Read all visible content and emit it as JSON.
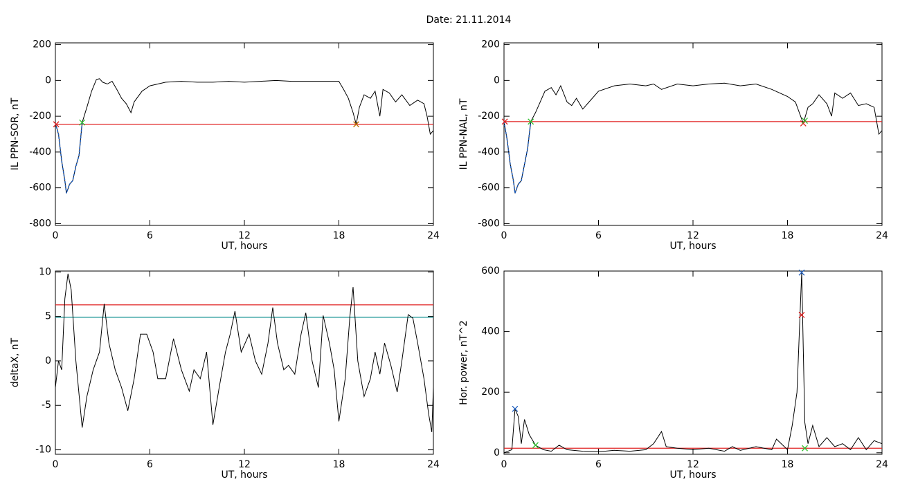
{
  "title": "Date:  21.11.2014",
  "chart_data": [
    {
      "type": "line",
      "xlabel": "UT, hours",
      "ylabel": "IL PPN-SOR, nT",
      "xlim": [
        0,
        24
      ],
      "ylim": [
        -810,
        210
      ],
      "xticks": [
        0,
        6,
        12,
        18,
        24
      ],
      "yticks": [
        -800,
        -600,
        -400,
        -200,
        0,
        200
      ],
      "series": [
        {
          "color": "#000000",
          "x": [
            0,
            0.2,
            0.4,
            0.6,
            0.7,
            0.9,
            1.1,
            1.3,
            1.5,
            1.7,
            2.0,
            2.3,
            2.6,
            2.8,
            3.0,
            3.3,
            3.6,
            3.9,
            4.2,
            4.5,
            4.8,
            5.0,
            5.5,
            6,
            6.5,
            7,
            8,
            9,
            10,
            11,
            12,
            13,
            14,
            15,
            16,
            17,
            18,
            18.3,
            18.6,
            18.9,
            19.1,
            19.3,
            19.6,
            20,
            20.3,
            20.6,
            20.8,
            21.2,
            21.6,
            22,
            22.5,
            23,
            23.4,
            23.6,
            23.8,
            24
          ],
          "values": [
            -240,
            -300,
            -450,
            -560,
            -630,
            -580,
            -560,
            -480,
            -420,
            -235,
            -150,
            -60,
            5,
            10,
            -10,
            -20,
            -5,
            -50,
            -100,
            -130,
            -180,
            -120,
            -60,
            -30,
            -20,
            -10,
            -5,
            -10,
            -10,
            -5,
            -10,
            -5,
            0,
            -5,
            -5,
            -5,
            -5,
            -50,
            -100,
            -180,
            -245,
            -150,
            -80,
            -100,
            -60,
            -200,
            -50,
            -70,
            -120,
            -80,
            -140,
            -110,
            -130,
            -200,
            -300,
            -280
          ]
        },
        {
          "color": "#1f5fbf",
          "x": [
            0,
            0.2,
            0.4,
            0.6,
            0.7,
            0.9,
            1.1,
            1.3,
            1.5,
            1.7
          ],
          "values": [
            -240,
            -300,
            -450,
            -560,
            -630,
            -580,
            -560,
            -480,
            -420,
            -235
          ]
        }
      ],
      "reference_lines": [
        {
          "value": -245,
          "color": "#e02020"
        }
      ],
      "markers": [
        {
          "x": 0.05,
          "y": -245,
          "color": "#e02020"
        },
        {
          "x": 1.7,
          "y": -235,
          "color": "#30c030"
        },
        {
          "x": 19.1,
          "y": -245,
          "color": "#c07000"
        }
      ]
    },
    {
      "type": "line",
      "xlabel": "UT, hours",
      "ylabel": "IL PPN-NAL, nT",
      "xlim": [
        0,
        24
      ],
      "ylim": [
        -810,
        210
      ],
      "xticks": [
        0,
        6,
        12,
        18,
        24
      ],
      "yticks": [
        -800,
        -600,
        -400,
        -200,
        0,
        200
      ],
      "series": [
        {
          "color": "#000000",
          "x": [
            0,
            0.2,
            0.4,
            0.6,
            0.7,
            0.9,
            1.1,
            1.3,
            1.5,
            1.7,
            2,
            2.3,
            2.6,
            3,
            3.3,
            3.6,
            4,
            4.3,
            4.6,
            5,
            5.3,
            6,
            7,
            8,
            9,
            9.5,
            10,
            11,
            12,
            13,
            14,
            15,
            16,
            17,
            18,
            18.5,
            19,
            19.3,
            19.6,
            20,
            20.5,
            20.8,
            21,
            21.5,
            22,
            22.5,
            23,
            23.5,
            23.8,
            24
          ],
          "values": [
            -230,
            -330,
            -470,
            -560,
            -630,
            -580,
            -560,
            -470,
            -380,
            -230,
            -180,
            -120,
            -60,
            -40,
            -80,
            -30,
            -120,
            -140,
            -100,
            -160,
            -130,
            -60,
            -30,
            -20,
            -30,
            -20,
            -50,
            -20,
            -30,
            -20,
            -15,
            -30,
            -20,
            -50,
            -90,
            -120,
            -240,
            -150,
            -130,
            -80,
            -130,
            -200,
            -70,
            -100,
            -70,
            -140,
            -130,
            -150,
            -300,
            -280
          ]
        },
        {
          "color": "#1f5fbf",
          "x": [
            0,
            0.2,
            0.4,
            0.6,
            0.7,
            0.9,
            1.1,
            1.3,
            1.5,
            1.7
          ],
          "values": [
            -230,
            -330,
            -470,
            -560,
            -630,
            -580,
            -560,
            -470,
            -380,
            -230
          ]
        }
      ],
      "reference_lines": [
        {
          "value": -230,
          "color": "#e02020"
        }
      ],
      "markers": [
        {
          "x": 0.05,
          "y": -230,
          "color": "#e02020"
        },
        {
          "x": 1.7,
          "y": -230,
          "color": "#30c030"
        },
        {
          "x": 19,
          "y": -240,
          "color": "#e02020"
        },
        {
          "x": 19.1,
          "y": -225,
          "color": "#30c030"
        }
      ]
    },
    {
      "type": "line",
      "xlabel": "UT, hours",
      "ylabel": "deltaX, nT",
      "xlim": [
        0,
        24
      ],
      "ylim": [
        -10.5,
        10.1
      ],
      "xticks": [
        0,
        6,
        12,
        18,
        24
      ],
      "yticks": [
        -10,
        -5,
        0,
        5,
        10
      ],
      "series": [
        {
          "color": "#000000",
          "x": [
            0,
            0.2,
            0.4,
            0.6,
            0.8,
            1.0,
            1.3,
            1.7,
            2,
            2.4,
            2.8,
            3.1,
            3.4,
            3.8,
            4.2,
            4.6,
            5,
            5.4,
            5.8,
            6.2,
            6.5,
            7,
            7.5,
            8,
            8.5,
            8.8,
            9.2,
            9.6,
            10,
            10.4,
            10.8,
            11.1,
            11.4,
            11.8,
            12.3,
            12.7,
            13.1,
            13.5,
            13.8,
            14.1,
            14.5,
            14.8,
            15.2,
            15.6,
            15.9,
            16.3,
            16.7,
            17,
            17.4,
            17.7,
            18,
            18.4,
            18.7,
            18.9,
            19.2,
            19.6,
            20,
            20.3,
            20.6,
            20.9,
            21.3,
            21.7,
            22,
            22.4,
            22.7,
            23,
            23.4,
            23.7,
            23.9,
            24
          ],
          "values": [
            -3,
            0,
            -1,
            7,
            9.8,
            8,
            0,
            -7.5,
            -4,
            -1,
            1,
            6.4,
            2,
            -1,
            -3,
            -5.6,
            -2,
            3,
            3,
            1,
            -2,
            -2,
            2.5,
            -1,
            -3.4,
            -1,
            -2,
            1,
            -7.2,
            -3,
            1,
            3,
            5.6,
            1,
            3,
            0,
            -1.5,
            2,
            6,
            2,
            -1,
            -0.5,
            -1.5,
            3,
            5.4,
            0,
            -3,
            5.1,
            2,
            -1,
            -6.8,
            -2,
            5,
            8.3,
            0,
            -4,
            -2,
            1,
            -1.5,
            2,
            -0.5,
            -3.5,
            0,
            5.2,
            4.8,
            2,
            -2,
            -6,
            -8,
            -3
          ]
        }
      ],
      "reference_lines": [
        {
          "value": 6.3,
          "color": "#e02020"
        },
        {
          "value": 4.9,
          "color": "#109090"
        }
      ],
      "markers": []
    },
    {
      "type": "line",
      "xlabel": "UT, hours",
      "ylabel": "Hor. power, nT^2",
      "xlim": [
        0,
        24
      ],
      "ylim": [
        -5,
        600
      ],
      "xticks": [
        0,
        6,
        12,
        18,
        24
      ],
      "yticks": [
        0,
        200,
        400,
        600
      ],
      "series": [
        {
          "color": "#000000",
          "x": [
            0,
            0.5,
            0.7,
            0.9,
            1.1,
            1.3,
            1.6,
            2,
            2.5,
            3,
            3.5,
            4,
            5,
            6,
            7,
            8,
            9,
            9.5,
            10,
            10.3,
            11,
            12,
            13,
            14,
            14.5,
            15,
            16,
            17,
            17.3,
            18,
            18.3,
            18.6,
            18.9,
            19.1,
            19.3,
            19.6,
            20,
            20.5,
            21,
            21.5,
            22,
            22.5,
            23,
            23.5,
            24
          ],
          "values": [
            0,
            10,
            145,
            120,
            30,
            110,
            60,
            25,
            10,
            5,
            25,
            10,
            5,
            3,
            8,
            5,
            10,
            30,
            70,
            20,
            15,
            10,
            15,
            5,
            20,
            8,
            20,
            10,
            45,
            10,
            90,
            200,
            595,
            100,
            30,
            90,
            20,
            50,
            20,
            30,
            10,
            50,
            10,
            40,
            30
          ]
        }
      ],
      "reference_lines": [
        {
          "value": 15,
          "color": "#e02020"
        }
      ],
      "markers": [
        {
          "x": 0.7,
          "y": 145,
          "color": "#1f5fbf"
        },
        {
          "x": 2,
          "y": 25,
          "color": "#30c030"
        },
        {
          "x": 18.9,
          "y": 595,
          "color": "#1f5fbf"
        },
        {
          "x": 18.9,
          "y": 455,
          "color": "#e02020"
        },
        {
          "x": 19.1,
          "y": 15,
          "color": "#30c030"
        }
      ]
    }
  ]
}
